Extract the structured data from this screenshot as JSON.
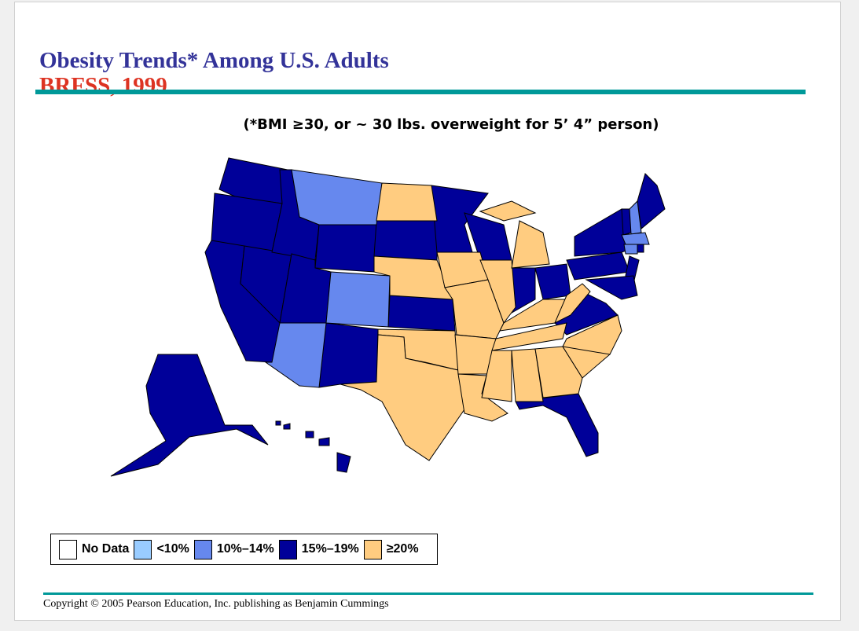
{
  "slide": {
    "title": "Obesity Trends* Among U.S. Adults",
    "subtitle": "BRFSS, 1999",
    "note": "(*BMI ≥30, or ~ 30 lbs. overweight for 5’ 4” person)",
    "copyright": "Copyright © 2005 Pearson Education, Inc. publishing as Benjamin Cummings"
  },
  "legend": [
    {
      "label": "No Data",
      "color": "#ffffff",
      "key": "none"
    },
    {
      "label": "<10%",
      "color": "#99ccff",
      "key": "lt10"
    },
    {
      "label": "10%–14%",
      "color": "#6688ee",
      "key": "10-14"
    },
    {
      "label": "15%–19%",
      "color": "#000099",
      "key": "15-19"
    },
    {
      "label": "≥20%",
      "color": "#ffcc80",
      "key": "ge20"
    }
  ],
  "map_data": {
    "year": 1999,
    "states": {
      "WA": "15-19",
      "OR": "15-19",
      "CA": "15-19",
      "NV": "15-19",
      "ID": "15-19",
      "WY": "15-19",
      "UT": "15-19",
      "NM": "15-19",
      "SD": "15-19",
      "MN": "15-19",
      "KS": "15-19",
      "WI": "15-19",
      "IN": "15-19",
      "OH": "15-19",
      "PA": "15-19",
      "NY": "15-19",
      "NJ": "15-19",
      "MD": "15-19",
      "VT": "15-19",
      "ME": "15-19",
      "VA": "15-19",
      "FL": "15-19",
      "AK": "15-19",
      "HI": "15-19",
      "RI": "15-19",
      "MT": "10-14",
      "CO": "10-14",
      "AZ": "10-14",
      "NH": "10-14",
      "MA": "10-14",
      "CT": "10-14",
      "ND": "ge20",
      "NE": "ge20",
      "OK": "ge20",
      "TX": "ge20",
      "IA": "ge20",
      "MO": "ge20",
      "AR": "ge20",
      "LA": "ge20",
      "IL": "ge20",
      "MI": "ge20",
      "KY": "ge20",
      "TN": "ge20",
      "MS": "ge20",
      "AL": "ge20",
      "GA": "ge20",
      "SC": "ge20",
      "NC": "ge20",
      "WV": "ge20"
    }
  }
}
